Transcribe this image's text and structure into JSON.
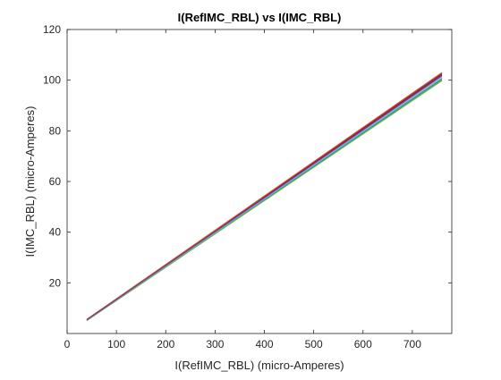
{
  "chart_data": {
    "type": "line",
    "title": "I(RefIMC_RBL) vs I(IMC_RBL)",
    "xlabel": "I(RefIMC_RBL) (micro-Amperes)",
    "ylabel": "I(IMC_RBL) (micro-Amperes)",
    "xlim": [
      0,
      780
    ],
    "ylim": [
      0,
      120
    ],
    "xticks": [
      0,
      100,
      200,
      300,
      400,
      500,
      600,
      700
    ],
    "yticks": [
      20,
      40,
      60,
      80,
      100,
      120
    ],
    "grid": false,
    "legend": "none",
    "series": [
      {
        "color": "#0072bd",
        "x": [
          40,
          760
        ],
        "y": [
          5.5,
          102.5
        ]
      },
      {
        "color": "#d95319",
        "x": [
          40,
          760
        ],
        "y": [
          5.4,
          102.0
        ]
      },
      {
        "color": "#edb120",
        "x": [
          40,
          760
        ],
        "y": [
          5.3,
          101.0
        ]
      },
      {
        "color": "#7e2f8e",
        "x": [
          40,
          760
        ],
        "y": [
          5.5,
          102.8
        ]
      },
      {
        "color": "#77ac30",
        "x": [
          40,
          760
        ],
        "y": [
          5.2,
          100.0
        ]
      },
      {
        "color": "#4dbeee",
        "x": [
          40,
          760
        ],
        "y": [
          5.4,
          101.5
        ]
      },
      {
        "color": "#a2142f",
        "x": [
          40,
          760
        ],
        "y": [
          5.5,
          102.3
        ]
      },
      {
        "color": "#0072bd",
        "x": [
          40,
          760
        ],
        "y": [
          5.3,
          100.5
        ]
      },
      {
        "color": "#d95319",
        "x": [
          40,
          760
        ],
        "y": [
          5.6,
          103.0
        ]
      },
      {
        "color": "#77ac30",
        "x": [
          40,
          760
        ],
        "y": [
          5.1,
          99.8
        ]
      },
      {
        "color": "#4dbeee",
        "x": [
          40,
          760
        ],
        "y": [
          5.3,
          100.8
        ]
      },
      {
        "color": "#7e2f8e",
        "x": [
          40,
          760
        ],
        "y": [
          5.4,
          101.8
        ]
      }
    ]
  }
}
